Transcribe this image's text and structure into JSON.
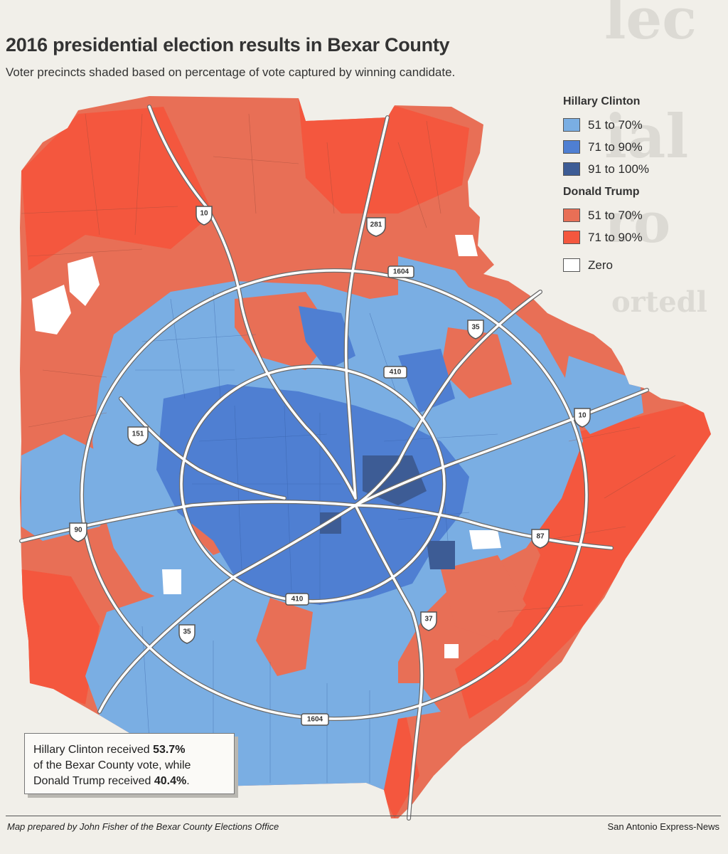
{
  "background_text": {
    "line1": "lec",
    "line2": "ial",
    "line3": "ro",
    "line4": "ortedl"
  },
  "title": "2016 presidential election results in Bexar County",
  "subtitle": "Voter precincts shaded based on percentage of vote captured by winning candidate.",
  "legend": {
    "clinton": {
      "heading": "Hillary Clinton",
      "items": [
        {
          "label": "51 to 70%",
          "color": "#7aaee3"
        },
        {
          "label": "71 to 90%",
          "color": "#4f7fd2"
        },
        {
          "label": "91 to 100%",
          "color": "#3d5c95"
        }
      ]
    },
    "trump": {
      "heading": "Donald Trump",
      "items": [
        {
          "label": "51 to 70%",
          "color": "#e86f56"
        },
        {
          "label": "71 to 90%",
          "color": "#f4573e"
        }
      ]
    },
    "zero": {
      "label": "Zero",
      "color": "#ffffff"
    }
  },
  "highways": {
    "i10_nw": "10",
    "us281": "281",
    "loop1604_north": "1604",
    "i35_ne": "35",
    "loop410_north": "410",
    "i10_east": "10",
    "sh151": "151",
    "us90": "90",
    "us87": "87",
    "loop410_south": "410",
    "i35_sw": "35",
    "i37": "37",
    "loop1604_south": "1604"
  },
  "callout": {
    "line1_pre": "Hillary Clinton received ",
    "clinton_pct": "53.7%",
    "line2": "of the Bexar County vote, while",
    "line3_pre": "Donald Trump received ",
    "trump_pct": "40.4%",
    "line3_post": "."
  },
  "footer": {
    "credit": "Map prepared by John Fisher of the Bexar County Elections Office",
    "source": "San Antonio Express-News"
  }
}
